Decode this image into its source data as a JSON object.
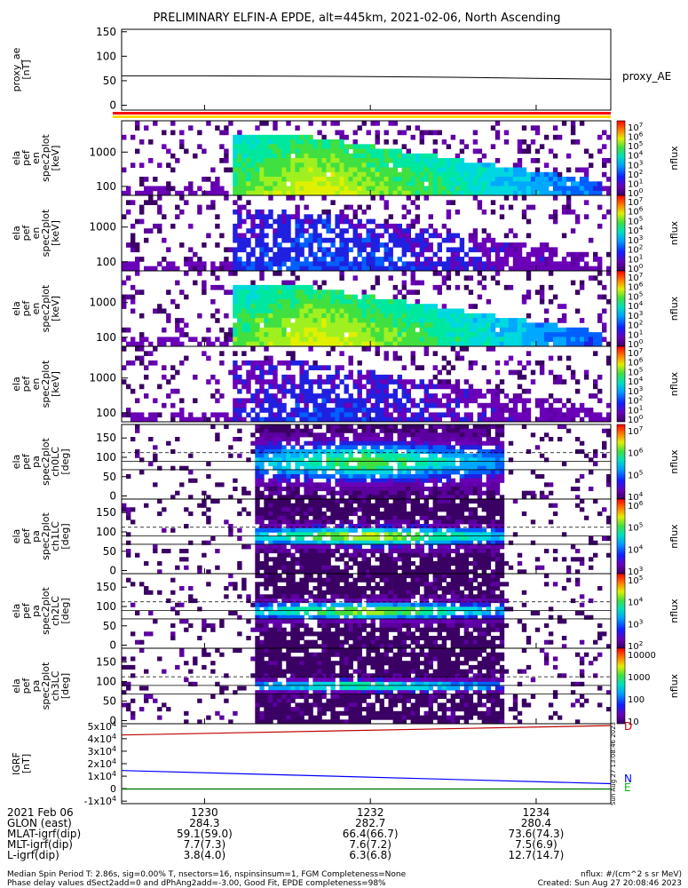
{
  "title": "PRELIMINARY ELFIN-A EPDE, alt=445km, 2021-02-06, North Ascending",
  "colors": {
    "red": "#ff0000",
    "yellow": "#ffd700",
    "blue": "#0000ff",
    "green": "#00c000",
    "black": "#000000"
  },
  "chart_data": [
    {
      "id": "proxy_ae",
      "type": "line",
      "ylabel": [
        "proxy_ae",
        "[nT]"
      ],
      "legend": "proxy_AE",
      "ylim": [
        -10,
        155
      ],
      "yticks": [
        "0",
        "50",
        "100",
        "150"
      ],
      "ytick_values": [
        0,
        50,
        100,
        150
      ],
      "x": [
        1229.0,
        1230.0,
        1231.0,
        1232.0,
        1233.0,
        1234.0,
        1234.9
      ],
      "values": [
        60,
        60,
        59.5,
        58.5,
        57,
        55,
        53
      ]
    },
    {
      "id": "spec_en_1",
      "type": "heatmap",
      "ylabel": [
        "ela",
        "pef",
        "en",
        "spec2plot",
        "[keV]"
      ],
      "yticks": [
        "100",
        "1000"
      ],
      "scale_label": "nflux",
      "scale_ticks": [
        "10^7",
        "10^6",
        "10^5",
        "10^4",
        "10^3",
        "10^2",
        "10^1",
        "10^0"
      ]
    },
    {
      "id": "spec_en_2",
      "type": "heatmap",
      "ylabel": [
        "ela",
        "pef",
        "en",
        "spec2plot",
        "[keV]"
      ],
      "yticks": [
        "100",
        "1000"
      ],
      "scale_label": "nflux",
      "scale_ticks": [
        "10^7",
        "10^6",
        "10^5",
        "10^4",
        "10^3",
        "10^2",
        "10^1",
        "10^0"
      ]
    },
    {
      "id": "spec_en_3",
      "type": "heatmap",
      "ylabel": [
        "ela",
        "pef",
        "en",
        "spec2plot",
        "[keV]"
      ],
      "yticks": [
        "100",
        "1000"
      ],
      "scale_label": "nflux",
      "scale_ticks": [
        "10^7",
        "10^6",
        "10^5",
        "10^4",
        "10^3",
        "10^2",
        "10^1",
        "10^0"
      ]
    },
    {
      "id": "spec_en_4",
      "type": "heatmap",
      "ylabel": [
        "ela",
        "pef",
        "en",
        "spec2plot",
        "[keV]"
      ],
      "yticks": [
        "100",
        "1000"
      ],
      "scale_label": "nflux",
      "scale_ticks": [
        "10^7",
        "10^6",
        "10^5",
        "10^4",
        "10^3",
        "10^2",
        "10^1",
        "10^0"
      ]
    },
    {
      "id": "spec_pa_ch0",
      "type": "heatmap",
      "ylabel": [
        "ela",
        "pef",
        "pa",
        "spec2plot",
        "ch0LC",
        "[deg]"
      ],
      "yticks": [
        "0",
        "50",
        "100",
        "150"
      ],
      "scale_label": "nflux",
      "scale_ticks": [
        "10^7",
        "10^6",
        "10^5",
        "10^4"
      ]
    },
    {
      "id": "spec_pa_ch1",
      "type": "heatmap",
      "ylabel": [
        "ela",
        "pef",
        "pa",
        "spec2plot",
        "ch1LC",
        "[deg]"
      ],
      "yticks": [
        "0",
        "50",
        "100",
        "150"
      ],
      "scale_label": "nflux",
      "scale_ticks": [
        "10^6",
        "10^5",
        "10^4",
        "10^3"
      ]
    },
    {
      "id": "spec_pa_ch2",
      "type": "heatmap",
      "ylabel": [
        "ela",
        "pef",
        "pa",
        "spec2plot",
        "ch2LC",
        "[deg]"
      ],
      "yticks": [
        "0",
        "50",
        "100",
        "150"
      ],
      "scale_label": "nflux",
      "scale_ticks": [
        "10^5",
        "10^4",
        "10^3",
        "10^2"
      ]
    },
    {
      "id": "spec_pa_ch3",
      "type": "heatmap",
      "ylabel": [
        "ela",
        "pef",
        "pa",
        "spec2plot",
        "ch3LC",
        "[deg]"
      ],
      "yticks": [
        "0",
        "50",
        "100",
        "150"
      ],
      "scale_label": "nflux",
      "scale_ticks": [
        "10000",
        "1000",
        "100",
        "10"
      ]
    },
    {
      "id": "igrf",
      "type": "line",
      "ylabel": [
        "IGRF",
        "[nT]"
      ],
      "yticks": [
        "5x10^4",
        "4x10^4",
        "3x10^4",
        "2x10^4",
        "1x10^4",
        "0",
        "-1x10^4"
      ],
      "ytick_values": [
        50000,
        40000,
        30000,
        20000,
        10000,
        0,
        -10000
      ],
      "ylim": [
        -12000,
        52000
      ],
      "x": [
        1229.0,
        1234.9
      ],
      "series": [
        {
          "name": "D",
          "color": "#c00000",
          "values": [
            43000,
            50500
          ]
        },
        {
          "name": "N",
          "color": "#0000ff",
          "values": [
            14500,
            4000
          ]
        },
        {
          "name": "E",
          "color": "#00c000",
          "values": [
            -400,
            -400
          ]
        }
      ],
      "side_note": "Sun Aug 27 13:08:46 2023"
    }
  ],
  "xaxis": {
    "rows": [
      {
        "label": "2021 Feb 06",
        "values": [
          "1230",
          "1232",
          "1234"
        ]
      },
      {
        "label": "GLON (east)",
        "values": [
          "284.3",
          "282.7",
          "280.4"
        ]
      },
      {
        "label": "MLAT-igrf(dip)",
        "values": [
          "59.1(59.0)",
          "66.4(66.7)",
          "73.6(74.3)"
        ]
      },
      {
        "label": "MLT-igrf(dip)",
        "values": [
          "7.7(7.3)",
          "7.6(7.2)",
          "7.5(6.9)"
        ]
      },
      {
        "label": "L-igrf(dip)",
        "values": [
          "3.8(4.0)",
          "6.3(6.8)",
          "12.7(14.7)"
        ]
      }
    ],
    "tick_times": [
      1230,
      1232,
      1234
    ],
    "xlim": [
      1229.0,
      1234.9
    ]
  },
  "footer": {
    "line1": "Median Spin Period T: 2.86s, sig=0.00% T, nsectors=16, nspinsinsum=1, FGM Completeness=None",
    "line2": "Phase delay values dSect2add=0 and dPhAng2add=-3.00, Good Fit, EPDE completeness=98%",
    "units": "nflux: #/(cm^2 s sr MeV)",
    "created": "Created: Sun Aug 27 20:08:46 2023"
  }
}
